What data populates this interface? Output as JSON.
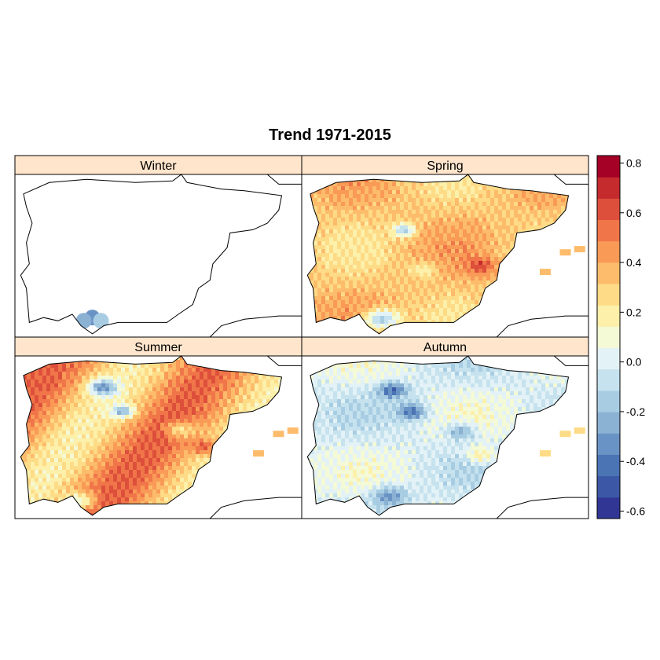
{
  "title": "Trend 1971-2015",
  "panels": [
    {
      "id": "winter",
      "label": "Winter"
    },
    {
      "id": "spring",
      "label": "Spring"
    },
    {
      "id": "summer",
      "label": "Summer"
    },
    {
      "id": "autumn",
      "label": "Autumn"
    }
  ],
  "colorbar": {
    "ticks": [
      "0.8",
      "0.6",
      "0.4",
      "0.2",
      "0.0",
      "-0.2",
      "-0.4",
      "-0.6"
    ],
    "range": [
      -0.63,
      0.83
    ],
    "palette": [
      "#313695",
      "#3b57a5",
      "#4a74b4",
      "#6a93c5",
      "#8bb1d3",
      "#a8cde3",
      "#c5e2ee",
      "#e3f2f6",
      "#f4f9d6",
      "#fcf0aa",
      "#fedb86",
      "#fdbc6b",
      "#f99a57",
      "#f07649",
      "#dd4f3b",
      "#c52a2d",
      "#a50026"
    ]
  },
  "colors": {
    "strip": "#ffe5cc",
    "frame": "#000000",
    "land_white": "#ffffff"
  }
}
